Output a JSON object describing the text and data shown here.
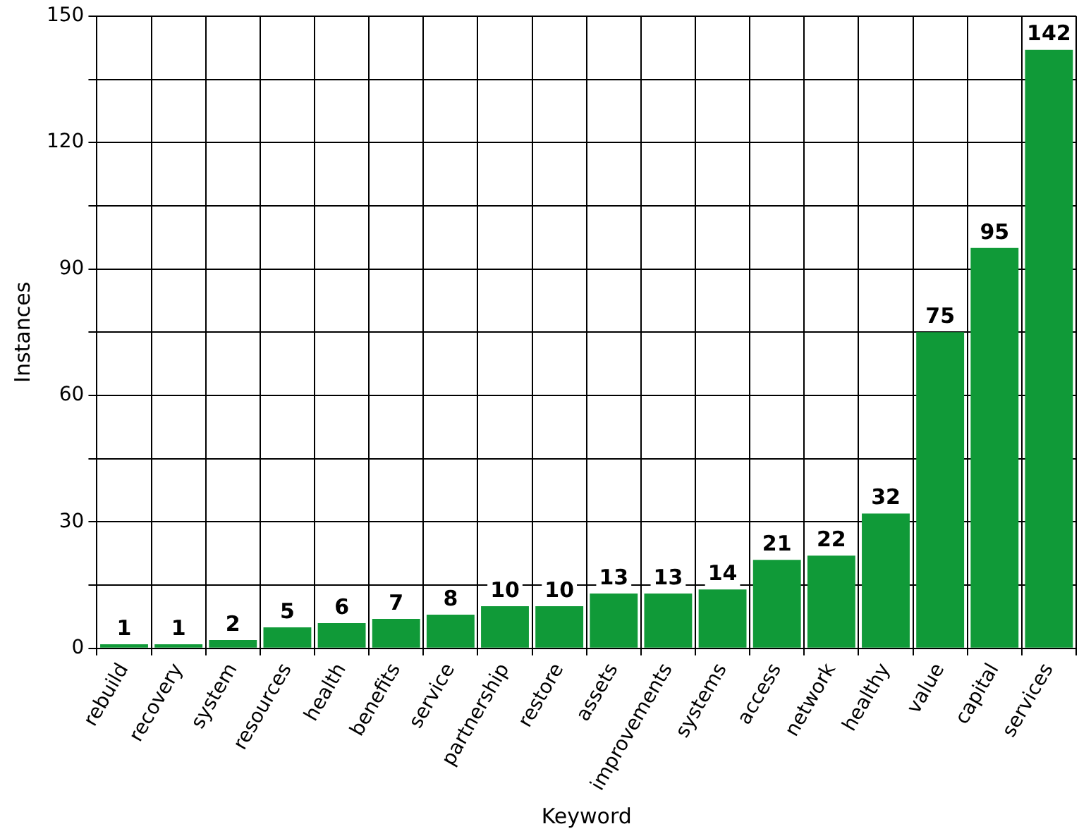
{
  "chart_data": {
    "type": "bar",
    "xlabel": "Keyword",
    "ylabel": "Instances",
    "categories": [
      "rebuild",
      "recovery",
      "system",
      "resources",
      "health",
      "benefits",
      "service",
      "partnership",
      "restore",
      "assets",
      "improvements",
      "systems",
      "access",
      "network",
      "healthy",
      "value",
      "capital",
      "services"
    ],
    "values": [
      1,
      1,
      2,
      5,
      6,
      7,
      8,
      10,
      10,
      13,
      13,
      14,
      21,
      22,
      32,
      75,
      95,
      142
    ],
    "color": "#109a38",
    "ylim": [
      0,
      150
    ],
    "yticks": [
      0,
      {
        "value": 15,
        "label": null
      },
      30,
      {
        "value": 45,
        "label": null
      },
      60,
      {
        "value": 75,
        "label": null
      },
      90,
      {
        "value": 105,
        "label": null
      },
      120,
      {
        "value": 135,
        "label": null
      },
      150
    ],
    "grid": true,
    "data_labels": true,
    "legend": false
  }
}
